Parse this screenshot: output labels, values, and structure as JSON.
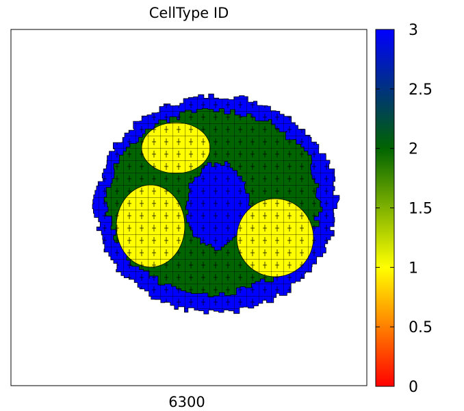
{
  "chart_data": {
    "type": "heatmap",
    "title": "CellType ID",
    "xlabel": "6300",
    "ylabel": "",
    "grid": false,
    "legend": "colorbar-right",
    "colorbar": {
      "range": [
        0,
        3
      ],
      "ticks": [
        0,
        0.5,
        1,
        1.5,
        2,
        2.5,
        3
      ],
      "tick_labels": [
        "0",
        "0.5",
        "1",
        "1.5",
        "2",
        "2.5",
        "3"
      ],
      "stops": [
        {
          "value": 0,
          "color": "#ff0000"
        },
        {
          "value": 1,
          "color": "#ffff00"
        },
        {
          "value": 2,
          "color": "#006400"
        },
        {
          "value": 3,
          "color": "#0000ff"
        }
      ]
    },
    "categories": [
      {
        "id": 1,
        "color": "#ffff00"
      },
      {
        "id": 2,
        "color": "#006400"
      },
      {
        "id": 3,
        "color": "#0000ff"
      }
    ],
    "colors": {
      "outline": "#000000",
      "medium": "#ffffff"
    }
  }
}
